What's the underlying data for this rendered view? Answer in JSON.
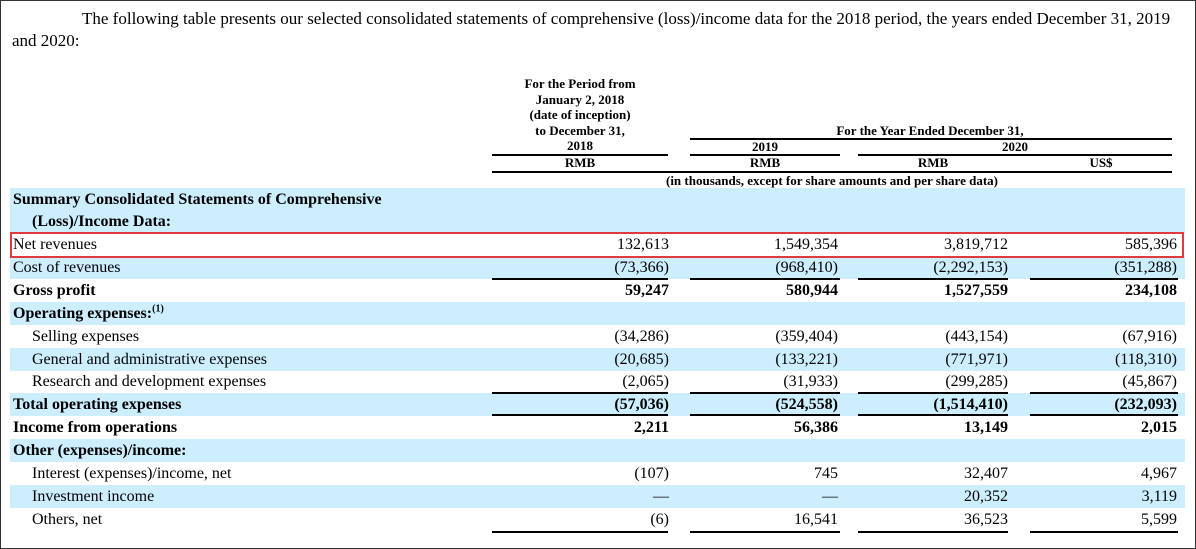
{
  "intro": "The following table presents our selected consolidated statements of comprehensive (loss)/income data for the 2018 period, the years ended December 31, 2019 and 2020:",
  "header": {
    "period_2018": [
      "For the Period from",
      "January 2, 2018",
      "(date of inception)",
      "to December 31,"
    ],
    "year_ended": "For the Year Ended December 31,",
    "y2018": "2018",
    "y2019": "2019",
    "y2020": "2020",
    "cur": [
      "RMB",
      "RMB",
      "RMB",
      "US$"
    ],
    "units": "(in thousands, except for share amounts and per share data)"
  },
  "section_title": [
    "Summary Consolidated Statements of Comprehensive",
    "(Loss)/Income Data:"
  ],
  "rows": [
    {
      "label": "Net revenues",
      "values": [
        "132,613",
        "1,549,354",
        "3,819,712",
        "585,396"
      ]
    },
    {
      "label": "Cost of revenues",
      "values": [
        "(73,366)",
        "(968,410)",
        "(2,292,153)",
        "(351,288)"
      ]
    },
    {
      "label": "Gross profit",
      "values": [
        "59,247",
        "580,944",
        "1,527,559",
        "234,108"
      ]
    },
    {
      "label": "Operating expenses:",
      "sup": "(1)",
      "values": [
        "",
        "",
        "",
        ""
      ]
    },
    {
      "label": "Selling expenses",
      "values": [
        "(34,286)",
        "(359,404)",
        "(443,154)",
        "(67,916)"
      ]
    },
    {
      "label": "General and administrative expenses",
      "values": [
        "(20,685)",
        "(133,221)",
        "(771,971)",
        "(118,310)"
      ]
    },
    {
      "label": "Research and development expenses",
      "values": [
        "(2,065)",
        "(31,933)",
        "(299,285)",
        "(45,867)"
      ]
    },
    {
      "label": "Total operating expenses",
      "values": [
        "(57,036)",
        "(524,558)",
        "(1,514,410)",
        "(232,093)"
      ]
    },
    {
      "label": "Income from operations",
      "values": [
        "2,211",
        "56,386",
        "13,149",
        "2,015"
      ]
    },
    {
      "label": "Other (expenses)/income:",
      "values": [
        "",
        "",
        "",
        ""
      ]
    },
    {
      "label": "Interest (expenses)/income, net",
      "values": [
        "(107)",
        "745",
        "32,407",
        "4,967"
      ]
    },
    {
      "label": "Investment income",
      "values": [
        "—",
        "—",
        "20,352",
        "3,119"
      ]
    },
    {
      "label": "Others, net",
      "values": [
        "(6)",
        "16,541",
        "36,523",
        "5,599"
      ]
    }
  ],
  "highlight_color": "#e0393e",
  "shade_color": "#cceeff"
}
